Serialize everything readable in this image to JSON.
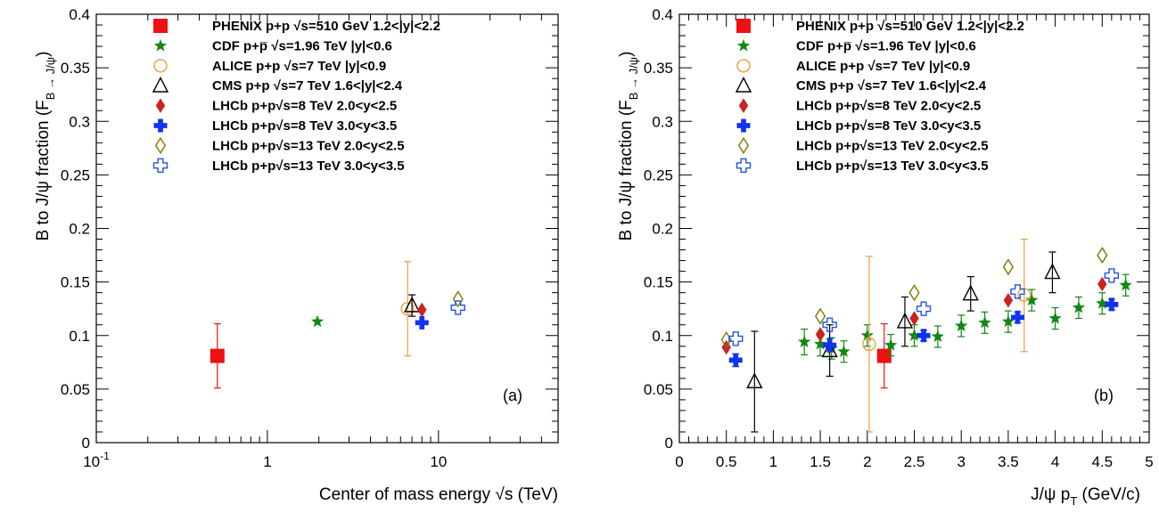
{
  "legend": [
    {
      "key": "phenix",
      "label": "PHENIX p+p  √s=510 GeV 1.2<|y|<2.2",
      "marker": "square-filled",
      "color": "#ee1111"
    },
    {
      "key": "cdf",
      "label": "CDF p+p̅ √s=1.96 TeV |y|<0.6",
      "marker": "star-filled",
      "color": "#118811"
    },
    {
      "key": "alice",
      "label": "ALICE p+p √s=7 TeV  |y|<0.9",
      "marker": "circle-open",
      "color": "#e8a040"
    },
    {
      "key": "cms",
      "label": "CMS p+p √s=7 TeV 1.6<|y|<2.4",
      "marker": "triangle-open",
      "color": "#000000"
    },
    {
      "key": "lhcb8a",
      "label": "LHCb p+p√s=8 TeV 2.0<y<2.5",
      "marker": "diamond-filled",
      "color": "#cc2222"
    },
    {
      "key": "lhcb8b",
      "label": "LHCb p+p√s=8 TeV 3.0<y<3.5",
      "marker": "cross-filled",
      "color": "#1133ee"
    },
    {
      "key": "lhcb13a",
      "label": "LHCb p+p√s=13 TeV 2.0<y<2.5",
      "marker": "diamond-open",
      "color": "#7a7a00"
    },
    {
      "key": "lhcb13b",
      "label": "LHCb p+p√s=13 TeV 3.0<y<3.5",
      "marker": "cross-open",
      "color": "#2255dd"
    }
  ],
  "chart_data": [
    {
      "type": "scatter",
      "panel_label": "(a)",
      "xlabel": "Center of mass energy √s (TeV)",
      "ylabel": "B to J/ψ fraction (F B → J/ψ)",
      "xscale": "log",
      "xlim": [
        0.1,
        50
      ],
      "ylim": [
        0,
        0.4
      ],
      "xticks": [
        {
          "v": 0.1,
          "base": "10",
          "exp": "-1"
        },
        {
          "v": 1,
          "label": "1"
        },
        {
          "v": 10,
          "label": "10"
        }
      ],
      "yticks": [
        {
          "v": 0,
          "label": "0"
        },
        {
          "v": 0.05,
          "label": "0.05"
        },
        {
          "v": 0.1,
          "label": "0.1"
        },
        {
          "v": 0.15,
          "label": "0.15"
        },
        {
          "v": 0.2,
          "label": "0.2"
        },
        {
          "v": 0.25,
          "label": "0.25"
        },
        {
          "v": 0.3,
          "label": "0.3"
        },
        {
          "v": 0.35,
          "label": "0.35"
        },
        {
          "v": 0.4,
          "label": "0.4"
        }
      ],
      "series": [
        {
          "name": "PHENIX p+p  √s=510 GeV 1.2<|y|<2.2",
          "key": "phenix",
          "points": [
            {
              "x": 0.51,
              "y": 0.081,
              "lo": 0.051,
              "hi": 0.111
            }
          ]
        },
        {
          "name": "CDF p+p̅ √s=1.96 TeV |y|<0.6",
          "key": "cdf",
          "points": [
            {
              "x": 1.96,
              "y": 0.113
            }
          ]
        },
        {
          "name": "ALICE p+p √s=7 TeV  |y|<0.9",
          "key": "alice",
          "points": [
            {
              "x": 6.6,
              "y": 0.125,
              "lo": 0.081,
              "hi": 0.169
            }
          ]
        },
        {
          "name": "CMS p+p √s=7 TeV 1.6<|y|<2.4",
          "key": "cms",
          "points": [
            {
              "x": 7.0,
              "y": 0.128,
              "lo": 0.118,
              "hi": 0.138
            }
          ]
        },
        {
          "name": "LHCb p+p√s=8 TeV 2.0<y<2.5",
          "key": "lhcb8a",
          "points": [
            {
              "x": 8.0,
              "y": 0.124
            }
          ]
        },
        {
          "name": "LHCb p+p√s=8 TeV 3.0<y<3.5",
          "key": "lhcb8b",
          "points": [
            {
              "x": 8.0,
              "y": 0.112
            }
          ]
        },
        {
          "name": "LHCb p+p√s=13 TeV 2.0<y<2.5",
          "key": "lhcb13a",
          "points": [
            {
              "x": 13.0,
              "y": 0.134
            }
          ]
        },
        {
          "name": "LHCb p+p√s=13 TeV 3.0<y<3.5",
          "key": "lhcb13b",
          "points": [
            {
              "x": 13.0,
              "y": 0.126
            }
          ]
        }
      ]
    },
    {
      "type": "scatter",
      "panel_label": "(b)",
      "xlabel": "J/ψ p T (GeV/c)",
      "ylabel": "B to J/ψ fraction (F B → J/ψ)",
      "xscale": "linear",
      "xlim": [
        0,
        5
      ],
      "ylim": [
        0,
        0.4
      ],
      "xticks": [
        {
          "v": 0,
          "label": "0"
        },
        {
          "v": 0.5,
          "label": "0.5"
        },
        {
          "v": 1,
          "label": "1"
        },
        {
          "v": 1.5,
          "label": "1.5"
        },
        {
          "v": 2,
          "label": "2"
        },
        {
          "v": 2.5,
          "label": "2.5"
        },
        {
          "v": 3,
          "label": "3"
        },
        {
          "v": 3.5,
          "label": "3.5"
        },
        {
          "v": 4,
          "label": "4"
        },
        {
          "v": 4.5,
          "label": "4.5"
        },
        {
          "v": 5,
          "label": "5"
        }
      ],
      "yticks": [
        {
          "v": 0,
          "label": "0"
        },
        {
          "v": 0.05,
          "label": "0.05"
        },
        {
          "v": 0.1,
          "label": "0.1"
        },
        {
          "v": 0.15,
          "label": "0.15"
        },
        {
          "v": 0.2,
          "label": "0.2"
        },
        {
          "v": 0.25,
          "label": "0.25"
        },
        {
          "v": 0.3,
          "label": "0.3"
        },
        {
          "v": 0.35,
          "label": "0.35"
        },
        {
          "v": 0.4,
          "label": "0.4"
        }
      ],
      "series": [
        {
          "name": "PHENIX p+p  √s=510 GeV 1.2<|y|<2.2",
          "key": "phenix",
          "points": [
            {
              "x": 2.18,
              "y": 0.081,
              "lo": 0.051,
              "hi": 0.111
            }
          ]
        },
        {
          "name": "CDF p+p̅ √s=1.96 TeV |y|<0.6",
          "key": "cdf",
          "points": [
            {
              "x": 1.33,
              "y": 0.094,
              "lo": 0.082,
              "hi": 0.106
            },
            {
              "x": 1.5,
              "y": 0.092,
              "lo": 0.081,
              "hi": 0.103
            },
            {
              "x": 1.62,
              "y": 0.088,
              "lo": 0.078,
              "hi": 0.098
            },
            {
              "x": 1.75,
              "y": 0.085,
              "lo": 0.075,
              "hi": 0.095
            },
            {
              "x": 2.0,
              "y": 0.1,
              "lo": 0.09,
              "hi": 0.11
            },
            {
              "x": 2.25,
              "y": 0.091,
              "lo": 0.081,
              "hi": 0.101
            },
            {
              "x": 2.5,
              "y": 0.1,
              "lo": 0.09,
              "hi": 0.11
            },
            {
              "x": 2.75,
              "y": 0.099,
              "lo": 0.089,
              "hi": 0.109
            },
            {
              "x": 3.0,
              "y": 0.109,
              "lo": 0.099,
              "hi": 0.119
            },
            {
              "x": 3.25,
              "y": 0.112,
              "lo": 0.102,
              "hi": 0.122
            },
            {
              "x": 3.5,
              "y": 0.113,
              "lo": 0.103,
              "hi": 0.123
            },
            {
              "x": 3.75,
              "y": 0.133,
              "lo": 0.123,
              "hi": 0.143
            },
            {
              "x": 4.0,
              "y": 0.116,
              "lo": 0.106,
              "hi": 0.126
            },
            {
              "x": 4.25,
              "y": 0.126,
              "lo": 0.116,
              "hi": 0.136
            },
            {
              "x": 4.5,
              "y": 0.13,
              "lo": 0.12,
              "hi": 0.14
            },
            {
              "x": 4.75,
              "y": 0.147,
              "lo": 0.137,
              "hi": 0.157
            }
          ]
        },
        {
          "name": "ALICE p+p √s=7 TeV  |y|<0.9",
          "key": "alice",
          "points": [
            {
              "x": 2.02,
              "y": 0.092,
              "lo": 0.01,
              "hi": 0.174
            },
            {
              "x": 3.67,
              "y": 0.138,
              "lo": 0.085,
              "hi": 0.19
            }
          ]
        },
        {
          "name": "CMS p+p √s=7 TeV 1.6<|y|<2.4",
          "key": "cms",
          "points": [
            {
              "x": 0.8,
              "y": 0.057,
              "lo": 0.01,
              "hi": 0.104
            },
            {
              "x": 1.6,
              "y": 0.086,
              "lo": 0.062,
              "hi": 0.11
            },
            {
              "x": 2.4,
              "y": 0.113,
              "lo": 0.09,
              "hi": 0.136
            },
            {
              "x": 3.1,
              "y": 0.139,
              "lo": 0.123,
              "hi": 0.155
            },
            {
              "x": 3.97,
              "y": 0.159,
              "lo": 0.14,
              "hi": 0.178
            }
          ]
        },
        {
          "name": "LHCb p+p√s=8 TeV 2.0<y<2.5",
          "key": "lhcb8a",
          "points": [
            {
              "x": 0.5,
              "y": 0.089
            },
            {
              "x": 1.5,
              "y": 0.101
            },
            {
              "x": 2.5,
              "y": 0.116
            },
            {
              "x": 3.5,
              "y": 0.133
            },
            {
              "x": 4.5,
              "y": 0.148
            }
          ]
        },
        {
          "name": "LHCb p+p√s=8 TeV 3.0<y<3.5",
          "key": "lhcb8b",
          "points": [
            {
              "x": 0.6,
              "y": 0.077,
              "lo": 0.071,
              "hi": 0.083
            },
            {
              "x": 1.6,
              "y": 0.091,
              "lo": 0.085,
              "hi": 0.097
            },
            {
              "x": 2.6,
              "y": 0.1,
              "lo": 0.095,
              "hi": 0.105
            },
            {
              "x": 3.6,
              "y": 0.117,
              "lo": 0.112,
              "hi": 0.122
            },
            {
              "x": 4.6,
              "y": 0.129,
              "lo": 0.124,
              "hi": 0.134
            }
          ]
        },
        {
          "name": "LHCb p+p√s=13 TeV 2.0<y<2.5",
          "key": "lhcb13a",
          "points": [
            {
              "x": 0.5,
              "y": 0.096
            },
            {
              "x": 1.5,
              "y": 0.118
            },
            {
              "x": 2.5,
              "y": 0.14
            },
            {
              "x": 3.5,
              "y": 0.164
            },
            {
              "x": 4.5,
              "y": 0.175
            }
          ]
        },
        {
          "name": "LHCb p+p√s=13 TeV 3.0<y<3.5",
          "key": "lhcb13b",
          "points": [
            {
              "x": 0.6,
              "y": 0.097
            },
            {
              "x": 1.6,
              "y": 0.11
            },
            {
              "x": 2.6,
              "y": 0.125
            },
            {
              "x": 3.6,
              "y": 0.141
            },
            {
              "x": 4.6,
              "y": 0.156
            }
          ]
        }
      ]
    }
  ]
}
